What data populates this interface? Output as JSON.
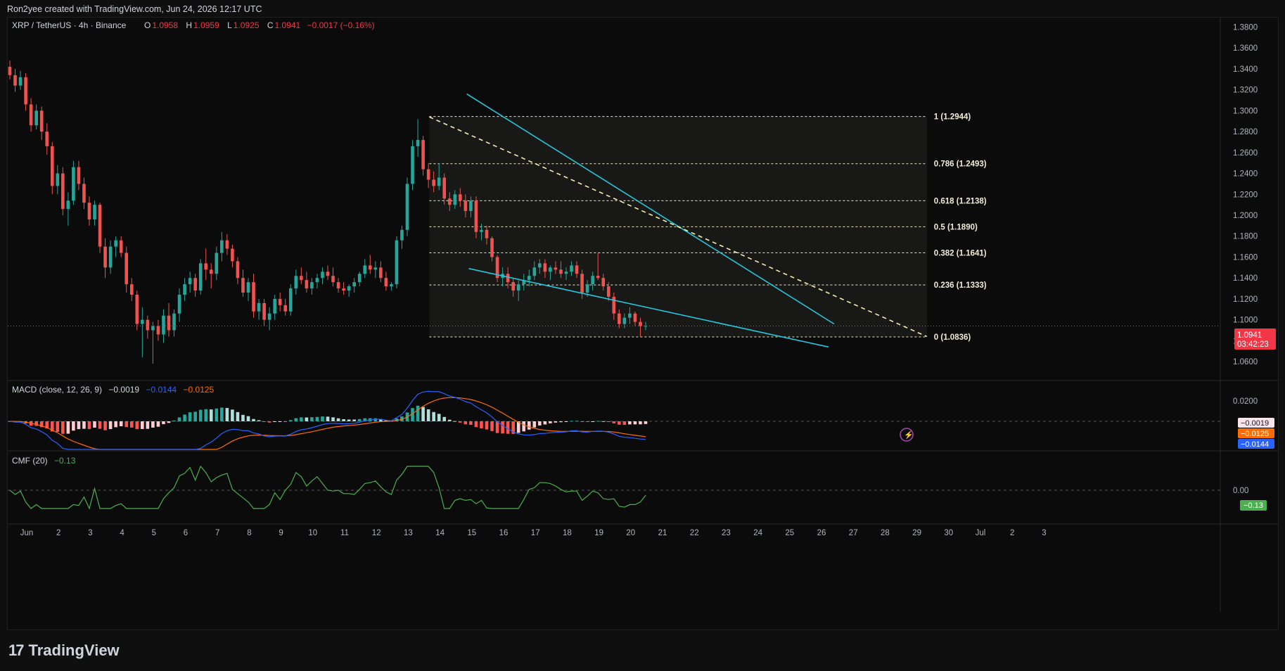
{
  "header": {
    "credit": "Ron2yee created with TradingView.com, Jun 24, 2026 12:17 UTC"
  },
  "symbol": {
    "name": "XRP / TetherUS · 4h · Binance",
    "o_label": "O",
    "o": "1.0958",
    "h_label": "H",
    "h": "1.0959",
    "l_label": "L",
    "l": "1.0925",
    "c_label": "C",
    "c": "1.0941",
    "change": "−0.0017 (−0.16%)"
  },
  "price_axis": {
    "ticks": [
      "1.3800",
      "1.3600",
      "1.3400",
      "1.3200",
      "1.3000",
      "1.2800",
      "1.2600",
      "1.2400",
      "1.2200",
      "1.2000",
      "1.1800",
      "1.1600",
      "1.1400",
      "1.1200",
      "1.1000",
      "1.0800",
      "1.0600"
    ],
    "last_price": "1.0941",
    "countdown": "03:42:23"
  },
  "fib": {
    "levels": [
      {
        "ratio": 1,
        "label": "1 (1.2944)"
      },
      {
        "ratio": 0.786,
        "label": "0.786 (1.2493)"
      },
      {
        "ratio": 0.618,
        "label": "0.618 (1.2138)"
      },
      {
        "ratio": 0.5,
        "label": "0.5 (1.1890)"
      },
      {
        "ratio": 0.382,
        "label": "0.382 (1.1641)"
      },
      {
        "ratio": 0.236,
        "label": "0.236 (1.1333)"
      },
      {
        "ratio": 0,
        "label": "0 (1.0836)"
      }
    ]
  },
  "macd": {
    "title": "MACD (close, 12, 26, 9)",
    "v1": "−0.0019",
    "v2": "−0.0144",
    "v3": "−0.0125",
    "tick": "0.0200",
    "hist_label": "−0.0019",
    "signal_label": "−0.0125",
    "macd_label": "−0.0144"
  },
  "cmf": {
    "title": "CMF (20)",
    "value": "−0.13",
    "tick": "0.00",
    "badge": "−0.13"
  },
  "time_axis": {
    "labels": [
      "Jun",
      "2",
      "3",
      "4",
      "5",
      "6",
      "7",
      "8",
      "9",
      "10",
      "11",
      "12",
      "13",
      "14",
      "15",
      "16",
      "17",
      "18",
      "19",
      "20",
      "21",
      "22",
      "23",
      "24",
      "25",
      "26",
      "27",
      "28",
      "29",
      "30",
      "Jul",
      "2",
      "3"
    ]
  },
  "brand": {
    "logo_text": "TradingView"
  },
  "colors": {
    "up": "#26a69a",
    "down": "#ef5350",
    "wedge": "#26c6da",
    "fib": "#f0ecc0",
    "macd": "#2962ff",
    "signal": "#ff6d00",
    "cmf": "#4caf50",
    "price_badge": "#f23645"
  },
  "chart_data": {
    "type": "candlestick",
    "symbol": "XRP / TetherUS",
    "interval": "4h",
    "ylim": [
      1.05,
      1.385
    ],
    "series": [
      {
        "name": "price",
        "x_start": "Jun 1",
        "bars_per_day": 6,
        "ohlc": [
          [
            1.342,
            1.348,
            1.33,
            1.334
          ],
          [
            1.334,
            1.34,
            1.318,
            1.324
          ],
          [
            1.324,
            1.338,
            1.32,
            1.332
          ],
          [
            1.332,
            1.336,
            1.3,
            1.306
          ],
          [
            1.306,
            1.312,
            1.28,
            1.286
          ],
          [
            1.286,
            1.306,
            1.282,
            1.3
          ],
          [
            1.3,
            1.304,
            1.272,
            1.28
          ],
          [
            1.28,
            1.288,
            1.258,
            1.266
          ],
          [
            1.266,
            1.27,
            1.22,
            1.228
          ],
          [
            1.228,
            1.248,
            1.22,
            1.24
          ],
          [
            1.24,
            1.246,
            1.2,
            1.206
          ],
          [
            1.206,
            1.222,
            1.19,
            1.214
          ],
          [
            1.214,
            1.252,
            1.21,
            1.246
          ],
          [
            1.246,
            1.252,
            1.224,
            1.23
          ],
          [
            1.23,
            1.236,
            1.206,
            1.212
          ],
          [
            1.212,
            1.218,
            1.19,
            1.196
          ],
          [
            1.196,
            1.214,
            1.19,
            1.21
          ],
          [
            1.21,
            1.212,
            1.164,
            1.17
          ],
          [
            1.17,
            1.178,
            1.14,
            1.15
          ],
          [
            1.15,
            1.176,
            1.144,
            1.17
          ],
          [
            1.17,
            1.18,
            1.16,
            1.176
          ],
          [
            1.176,
            1.18,
            1.16,
            1.164
          ],
          [
            1.164,
            1.17,
            1.126,
            1.134
          ],
          [
            1.134,
            1.14,
            1.118,
            1.124
          ],
          [
            1.124,
            1.128,
            1.09,
            1.096
          ],
          [
            1.096,
            1.112,
            1.064,
            1.1
          ],
          [
            1.1,
            1.104,
            1.082,
            1.09
          ],
          [
            1.09,
            1.098,
            1.058,
            1.094
          ],
          [
            1.094,
            1.1,
            1.08,
            1.086
          ],
          [
            1.086,
            1.11,
            1.078,
            1.104
          ],
          [
            1.104,
            1.116,
            1.084,
            1.09
          ],
          [
            1.09,
            1.11,
            1.084,
            1.106
          ],
          [
            1.106,
            1.13,
            1.098,
            1.124
          ],
          [
            1.124,
            1.14,
            1.118,
            1.134
          ],
          [
            1.134,
            1.146,
            1.126,
            1.14
          ],
          [
            1.14,
            1.144,
            1.122,
            1.128
          ],
          [
            1.128,
            1.158,
            1.124,
            1.154
          ],
          [
            1.154,
            1.168,
            1.138,
            1.148
          ],
          [
            1.148,
            1.154,
            1.13,
            1.144
          ],
          [
            1.144,
            1.17,
            1.138,
            1.164
          ],
          [
            1.164,
            1.184,
            1.156,
            1.176
          ],
          [
            1.176,
            1.182,
            1.162,
            1.168
          ],
          [
            1.168,
            1.172,
            1.15,
            1.156
          ],
          [
            1.156,
            1.16,
            1.134,
            1.14
          ],
          [
            1.14,
            1.148,
            1.122,
            1.126
          ],
          [
            1.126,
            1.14,
            1.118,
            1.136
          ],
          [
            1.136,
            1.144,
            1.102,
            1.108
          ],
          [
            1.108,
            1.12,
            1.1,
            1.116
          ],
          [
            1.116,
            1.12,
            1.094,
            1.1
          ],
          [
            1.1,
            1.112,
            1.09,
            1.106
          ],
          [
            1.106,
            1.124,
            1.1,
            1.12
          ],
          [
            1.12,
            1.126,
            1.108,
            1.114
          ],
          [
            1.114,
            1.12,
            1.104,
            1.108
          ],
          [
            1.108,
            1.134,
            1.104,
            1.13
          ],
          [
            1.13,
            1.148,
            1.124,
            1.142
          ],
          [
            1.142,
            1.15,
            1.134,
            1.138
          ],
          [
            1.138,
            1.146,
            1.126,
            1.13
          ],
          [
            1.13,
            1.14,
            1.124,
            1.136
          ],
          [
            1.136,
            1.144,
            1.13,
            1.14
          ],
          [
            1.14,
            1.15,
            1.134,
            1.146
          ],
          [
            1.146,
            1.152,
            1.138,
            1.142
          ],
          [
            1.142,
            1.15,
            1.132,
            1.136
          ],
          [
            1.136,
            1.14,
            1.126,
            1.13
          ],
          [
            1.13,
            1.136,
            1.124,
            1.128
          ],
          [
            1.128,
            1.134,
            1.122,
            1.132
          ],
          [
            1.132,
            1.14,
            1.126,
            1.136
          ],
          [
            1.136,
            1.146,
            1.132,
            1.144
          ],
          [
            1.144,
            1.158,
            1.14,
            1.152
          ],
          [
            1.152,
            1.162,
            1.144,
            1.148
          ],
          [
            1.148,
            1.156,
            1.14,
            1.15
          ],
          [
            1.15,
            1.156,
            1.136,
            1.14
          ],
          [
            1.14,
            1.146,
            1.128,
            1.132
          ],
          [
            1.132,
            1.136,
            1.128,
            1.134
          ],
          [
            1.134,
            1.18,
            1.13,
            1.176
          ],
          [
            1.176,
            1.19,
            1.168,
            1.186
          ],
          [
            1.186,
            1.236,
            1.18,
            1.23
          ],
          [
            1.23,
            1.272,
            1.224,
            1.266
          ],
          [
            1.266,
            1.292,
            1.256,
            1.272
          ],
          [
            1.272,
            1.276,
            1.238,
            1.244
          ],
          [
            1.244,
            1.25,
            1.226,
            1.234
          ],
          [
            1.234,
            1.242,
            1.222,
            1.228
          ],
          [
            1.228,
            1.25,
            1.224,
            1.236
          ],
          [
            1.236,
            1.24,
            1.21,
            1.216
          ],
          [
            1.216,
            1.222,
            1.204,
            1.21
          ],
          [
            1.21,
            1.224,
            1.206,
            1.22
          ],
          [
            1.22,
            1.226,
            1.208,
            1.214
          ],
          [
            1.214,
            1.22,
            1.198,
            1.204
          ],
          [
            1.204,
            1.218,
            1.198,
            1.214
          ],
          [
            1.214,
            1.218,
            1.178,
            1.184
          ],
          [
            1.184,
            1.192,
            1.176,
            1.186
          ],
          [
            1.186,
            1.19,
            1.172,
            1.178
          ],
          [
            1.178,
            1.18,
            1.156,
            1.16
          ],
          [
            1.16,
            1.162,
            1.136,
            1.14
          ],
          [
            1.14,
            1.15,
            1.132,
            1.144
          ],
          [
            1.144,
            1.15,
            1.13,
            1.136
          ],
          [
            1.136,
            1.14,
            1.122,
            1.128
          ],
          [
            1.128,
            1.138,
            1.118,
            1.134
          ],
          [
            1.134,
            1.144,
            1.128,
            1.138
          ],
          [
            1.138,
            1.148,
            1.132,
            1.142
          ],
          [
            1.142,
            1.156,
            1.138,
            1.15
          ],
          [
            1.15,
            1.158,
            1.144,
            1.154
          ],
          [
            1.154,
            1.158,
            1.14,
            1.146
          ],
          [
            1.146,
            1.152,
            1.138,
            1.15
          ],
          [
            1.15,
            1.156,
            1.144,
            1.148
          ],
          [
            1.148,
            1.156,
            1.14,
            1.144
          ],
          [
            1.144,
            1.15,
            1.138,
            1.146
          ],
          [
            1.146,
            1.156,
            1.142,
            1.152
          ],
          [
            1.152,
            1.156,
            1.14,
            1.144
          ],
          [
            1.144,
            1.148,
            1.12,
            1.126
          ],
          [
            1.126,
            1.138,
            1.122,
            1.134
          ],
          [
            1.134,
            1.146,
            1.128,
            1.142
          ],
          [
            1.142,
            1.164,
            1.138,
            1.14
          ],
          [
            1.14,
            1.144,
            1.128,
            1.132
          ],
          [
            1.132,
            1.136,
            1.118,
            1.122
          ],
          [
            1.122,
            1.126,
            1.1,
            1.106
          ],
          [
            1.106,
            1.11,
            1.092,
            1.096
          ],
          [
            1.096,
            1.106,
            1.092,
            1.102
          ],
          [
            1.102,
            1.112,
            1.096,
            1.106
          ],
          [
            1.106,
            1.108,
            1.094,
            1.098
          ],
          [
            1.098,
            1.102,
            1.084,
            1.094
          ],
          [
            1.094,
            1.098,
            1.09,
            1.0941
          ]
        ]
      }
    ],
    "annotations": [
      {
        "type": "falling_wedge",
        "upper": [
          [
            "Jun 14 20:00",
            1.316
          ],
          [
            "Jun 26 12:00",
            1.096
          ]
        ],
        "lower": [
          [
            "Jun 14 16:00",
            1.15
          ],
          [
            "Jun 26 04:00",
            1.074
          ]
        ]
      },
      {
        "type": "trendline_dashed",
        "points": [
          [
            "Jun 13 16:00",
            1.294
          ],
          [
            "Jun 30 04:00",
            1.084
          ]
        ]
      },
      {
        "type": "fib_retracement",
        "high": 1.2944,
        "low": 1.0836
      }
    ],
    "macd": {
      "params": [
        12,
        26,
        9
      ],
      "last": {
        "histogram": -0.0019,
        "macd": -0.0144,
        "signal": -0.0125
      }
    },
    "cmf": {
      "period": 20,
      "last": -0.13
    },
    "time_ticks": [
      "Jun",
      "2",
      "3",
      "4",
      "5",
      "6",
      "7",
      "8",
      "9",
      "10",
      "11",
      "12",
      "13",
      "14",
      "15",
      "16",
      "17",
      "18",
      "19",
      "20",
      "21",
      "22",
      "23",
      "24",
      "25",
      "26",
      "27",
      "28",
      "29",
      "30",
      "Jul",
      "2",
      "3"
    ]
  }
}
